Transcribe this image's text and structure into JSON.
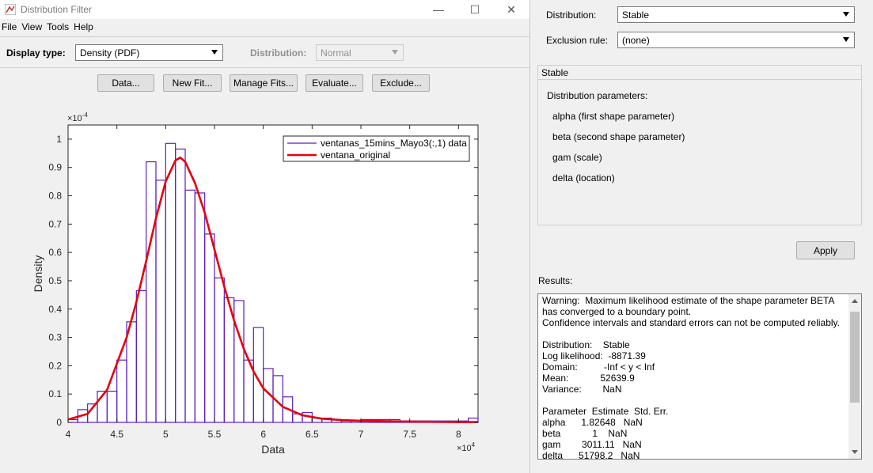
{
  "window": {
    "title": "Distribution Filter",
    "controls": {
      "minimize": "—",
      "maximize": "☐",
      "close": "✕"
    }
  },
  "menu": [
    "File",
    "View",
    "Tools",
    "Help"
  ],
  "toolbar": {
    "display_type_label": "Display type:",
    "display_type_value": "Density (PDF)",
    "distribution_label": "Distribution:",
    "distribution_value": "Normal"
  },
  "buttons": {
    "data": "Data...",
    "new_fit": "New Fit...",
    "manage_fits": "Manage Fits...",
    "evaluate": "Evaluate...",
    "exclude": "Exclude..."
  },
  "chart_data": {
    "type": "bar",
    "xlabel": "Data",
    "ylabel": "Density",
    "x_multiplier": "×10^4",
    "y_multiplier": "×10^-4",
    "xlim": [
      4.0,
      8.2
    ],
    "ylim": [
      0,
      1.05
    ],
    "xticks": [
      "4",
      "4.5",
      "5",
      "5.5",
      "6",
      "6.5",
      "7",
      "7.5",
      "8"
    ],
    "yticks": [
      "0",
      "0.1",
      "0.2",
      "0.3",
      "0.4",
      "0.5",
      "0.6",
      "0.7",
      "0.8",
      "0.9",
      "1"
    ],
    "bin_width": 0.1,
    "bin_starts": [
      4.0,
      4.1,
      4.2,
      4.3,
      4.4,
      4.5,
      4.6,
      4.7,
      4.8,
      4.9,
      5.0,
      5.1,
      5.2,
      5.3,
      5.4,
      5.5,
      5.6,
      5.7,
      5.8,
      5.9,
      6.0,
      6.1,
      6.2,
      6.3,
      6.4,
      6.5,
      6.6,
      6.7,
      6.8,
      6.9,
      7.0,
      7.1,
      7.2,
      7.3,
      7.4,
      7.5,
      7.6,
      7.7,
      7.8,
      7.9,
      8.0,
      8.1
    ],
    "histogram": [
      0.01,
      0.045,
      0.065,
      0.11,
      0.11,
      0.22,
      0.355,
      0.465,
      0.92,
      0.855,
      0.985,
      0.965,
      0.82,
      0.81,
      0.665,
      0.51,
      0.44,
      0.43,
      0.22,
      0.335,
      0.19,
      0.165,
      0.09,
      0.03,
      0.035,
      0.015,
      0.015,
      0.01,
      0.005,
      0.005,
      0.01,
      0.01,
      0.01,
      0.01,
      0.005,
      0.005,
      0.005,
      0.005,
      0.005,
      0.005,
      0.005,
      0.015
    ],
    "series": [
      {
        "name": "ventanas_15mins_Mayo3(:,1) data",
        "kind": "histogram",
        "color": "#5a1fbf"
      },
      {
        "name": "ventana_original",
        "kind": "line",
        "color": "#e8000b"
      }
    ],
    "fit_curve": {
      "x": [
        4.0,
        4.2,
        4.4,
        4.6,
        4.7,
        4.8,
        4.9,
        5.0,
        5.1,
        5.15,
        5.2,
        5.3,
        5.4,
        5.5,
        5.6,
        5.7,
        5.8,
        5.9,
        6.0,
        6.2,
        6.4,
        6.6,
        6.8,
        7.0,
        7.5,
        8.0,
        8.2
      ],
      "y": [
        0.01,
        0.03,
        0.115,
        0.3,
        0.425,
        0.57,
        0.72,
        0.85,
        0.925,
        0.935,
        0.92,
        0.845,
        0.74,
        0.61,
        0.48,
        0.36,
        0.26,
        0.18,
        0.12,
        0.055,
        0.025,
        0.013,
        0.008,
        0.006,
        0.003,
        0.001,
        0.001
      ]
    },
    "legend": "top-right",
    "grid": false
  },
  "right_panel": {
    "distribution_label": "Distribution:",
    "distribution_value": "Stable",
    "exclusion_label": "Exclusion rule:",
    "exclusion_value": "(none)",
    "panel_title": "Stable",
    "params_heading": "Distribution parameters:",
    "params": [
      "alpha (first shape parameter)",
      "beta (second shape parameter)",
      "gam (scale)",
      "delta (location)"
    ],
    "apply_label": "Apply",
    "results_label": "Results:",
    "results_text": "Warning:  Maximum likelihood estimate of the shape parameter BETA\nhas converged to a boundary point.\nConfidence intervals and standard errors can not be computed reliably.\n\nDistribution:    Stable\nLog likelihood:  -8871.39\nDomain:          -Inf < y < Inf\nMean:            52639.9\nVariance:        NaN\n\nParameter  Estimate  Std. Err.\nalpha      1.82648   NaN\nbeta            1    NaN\ngam        3011.11   NaN\ndelta      51798.2   NaN"
  }
}
